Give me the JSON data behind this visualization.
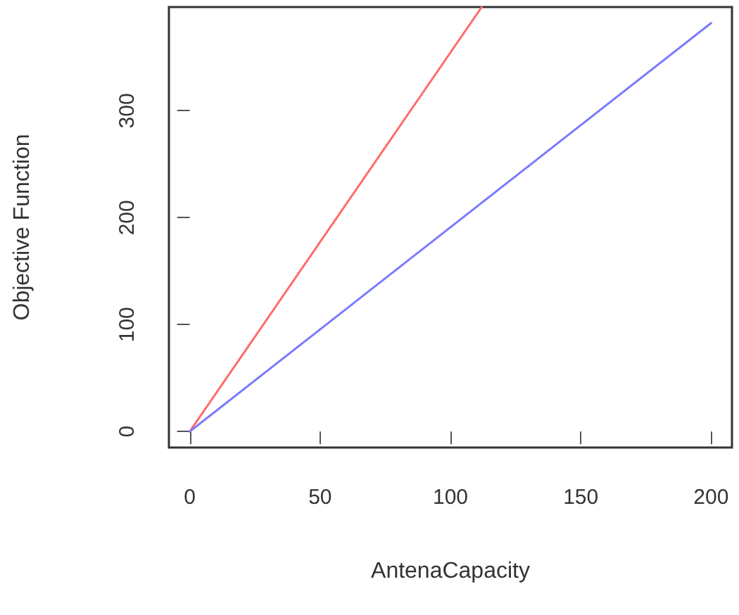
{
  "chart_data": {
    "type": "line",
    "xlabel": "AntenaCapacity",
    "ylabel": "Objective Function",
    "series": [
      {
        "color": "#ff6b6b",
        "x": [
          0,
          112
        ],
        "values": [
          0,
          397
        ]
      },
      {
        "color": "#7b7bff",
        "x": [
          0,
          200
        ],
        "values": [
          0,
          382
        ]
      }
    ],
    "xlim": [
      -8,
      208
    ],
    "xticks": [
      0,
      50,
      100,
      150,
      200
    ],
    "ylim": [
      -15,
      397
    ],
    "yticks": [
      0,
      100,
      200,
      300
    ],
    "grid": false,
    "marker": "none",
    "line_style": "solid"
  }
}
